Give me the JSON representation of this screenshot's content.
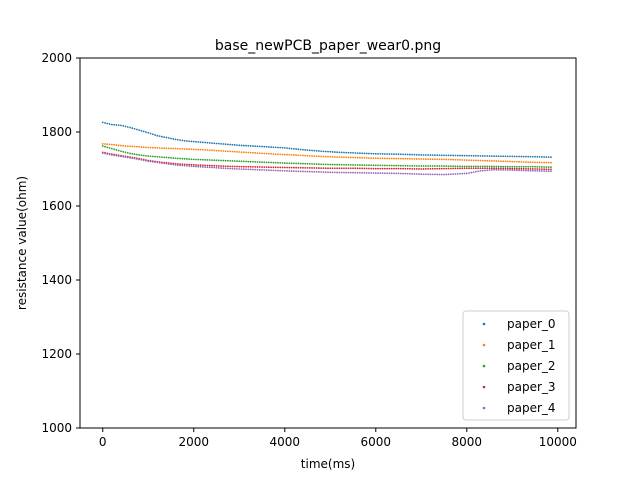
{
  "chart_data": {
    "type": "scatter",
    "title": "base_newPCB_paper_wear0.png",
    "xlabel": "time(ms)",
    "ylabel": "resistance value(ohm)",
    "xlim": [
      -500,
      10400
    ],
    "ylim": [
      1000,
      2000
    ],
    "xticks": [
      0,
      2000,
      4000,
      6000,
      8000,
      10000
    ],
    "yticks": [
      1000,
      1200,
      1400,
      1600,
      1800,
      2000
    ],
    "xtick_labels": [
      "0",
      "2000",
      "4000",
      "6000",
      "8000",
      "10000"
    ],
    "ytick_labels": [
      "1000",
      "1200",
      "1400",
      "1600",
      "1800",
      "2000"
    ],
    "legend_position": "lower-right",
    "x_range": [
      0,
      9850
    ],
    "series": [
      {
        "name": "paper_0",
        "color": "#1f77b4",
        "points": [
          [
            0,
            1826
          ],
          [
            200,
            1820
          ],
          [
            400,
            1818
          ],
          [
            600,
            1812
          ],
          [
            800,
            1805
          ],
          [
            1000,
            1798
          ],
          [
            1200,
            1790
          ],
          [
            1400,
            1785
          ],
          [
            1600,
            1780
          ],
          [
            1800,
            1776
          ],
          [
            2000,
            1774
          ],
          [
            2200,
            1772
          ],
          [
            2400,
            1770
          ],
          [
            2600,
            1768
          ],
          [
            2800,
            1766
          ],
          [
            3000,
            1764
          ],
          [
            3300,
            1762
          ],
          [
            3600,
            1760
          ],
          [
            4000,
            1757
          ],
          [
            4400,
            1752
          ],
          [
            4800,
            1748
          ],
          [
            5200,
            1745
          ],
          [
            5600,
            1743
          ],
          [
            6000,
            1741
          ],
          [
            6500,
            1740
          ],
          [
            7000,
            1738
          ],
          [
            7500,
            1737
          ],
          [
            8000,
            1736
          ],
          [
            8500,
            1735
          ],
          [
            9000,
            1734
          ],
          [
            9500,
            1733
          ],
          [
            9850,
            1732
          ]
        ]
      },
      {
        "name": "paper_1",
        "color": "#ff7f0e",
        "points": [
          [
            0,
            1768
          ],
          [
            200,
            1766
          ],
          [
            500,
            1762
          ],
          [
            800,
            1760
          ],
          [
            1000,
            1758
          ],
          [
            1400,
            1756
          ],
          [
            1800,
            1754
          ],
          [
            2200,
            1752
          ],
          [
            2600,
            1749
          ],
          [
            3000,
            1746
          ],
          [
            3400,
            1743
          ],
          [
            3800,
            1740
          ],
          [
            4200,
            1738
          ],
          [
            4600,
            1735
          ],
          [
            5000,
            1733
          ],
          [
            5500,
            1731
          ],
          [
            6000,
            1729
          ],
          [
            6500,
            1728
          ],
          [
            7000,
            1727
          ],
          [
            7500,
            1726
          ],
          [
            8000,
            1724
          ],
          [
            8500,
            1722
          ],
          [
            9000,
            1720
          ],
          [
            9500,
            1718
          ],
          [
            9850,
            1717
          ]
        ]
      },
      {
        "name": "paper_2",
        "color": "#2ca02c",
        "points": [
          [
            0,
            1762
          ],
          [
            200,
            1755
          ],
          [
            400,
            1748
          ],
          [
            600,
            1742
          ],
          [
            800,
            1738
          ],
          [
            1000,
            1735
          ],
          [
            1300,
            1732
          ],
          [
            1600,
            1729
          ],
          [
            2000,
            1726
          ],
          [
            2400,
            1724
          ],
          [
            2800,
            1722
          ],
          [
            3200,
            1720
          ],
          [
            3600,
            1718
          ],
          [
            4000,
            1716
          ],
          [
            4500,
            1714
          ],
          [
            5000,
            1712
          ],
          [
            5500,
            1711
          ],
          [
            6000,
            1710
          ],
          [
            6500,
            1709
          ],
          [
            7000,
            1708
          ],
          [
            7500,
            1708
          ],
          [
            8000,
            1707
          ],
          [
            8500,
            1707
          ],
          [
            9000,
            1706
          ],
          [
            9500,
            1706
          ],
          [
            9850,
            1705
          ]
        ]
      },
      {
        "name": "paper_3",
        "color": "#d62728",
        "points": [
          [
            0,
            1745
          ],
          [
            200,
            1740
          ],
          [
            400,
            1736
          ],
          [
            600,
            1732
          ],
          [
            800,
            1728
          ],
          [
            1000,
            1723
          ],
          [
            1300,
            1718
          ],
          [
            1600,
            1714
          ],
          [
            2000,
            1711
          ],
          [
            2400,
            1709
          ],
          [
            2800,
            1707
          ],
          [
            3200,
            1706
          ],
          [
            3600,
            1705
          ],
          [
            4000,
            1704
          ],
          [
            4500,
            1703
          ],
          [
            5000,
            1702
          ],
          [
            5500,
            1702
          ],
          [
            6000,
            1701
          ],
          [
            6500,
            1701
          ],
          [
            7000,
            1700
          ],
          [
            7500,
            1701
          ],
          [
            8000,
            1702
          ],
          [
            8500,
            1702
          ],
          [
            9000,
            1701
          ],
          [
            9500,
            1700
          ],
          [
            9850,
            1699
          ]
        ]
      },
      {
        "name": "paper_4",
        "color": "#9467bd",
        "points": [
          [
            0,
            1743
          ],
          [
            200,
            1738
          ],
          [
            400,
            1734
          ],
          [
            600,
            1730
          ],
          [
            800,
            1726
          ],
          [
            1000,
            1721
          ],
          [
            1300,
            1716
          ],
          [
            1600,
            1711
          ],
          [
            2000,
            1707
          ],
          [
            2400,
            1704
          ],
          [
            2800,
            1701
          ],
          [
            3200,
            1699
          ],
          [
            3600,
            1697
          ],
          [
            4000,
            1695
          ],
          [
            4500,
            1693
          ],
          [
            5000,
            1691
          ],
          [
            5500,
            1690
          ],
          [
            6000,
            1689
          ],
          [
            6500,
            1688
          ],
          [
            7000,
            1686
          ],
          [
            7500,
            1685
          ],
          [
            8000,
            1688
          ],
          [
            8300,
            1695
          ],
          [
            8600,
            1698
          ],
          [
            9000,
            1697
          ],
          [
            9500,
            1695
          ],
          [
            9850,
            1694
          ]
        ]
      }
    ]
  }
}
